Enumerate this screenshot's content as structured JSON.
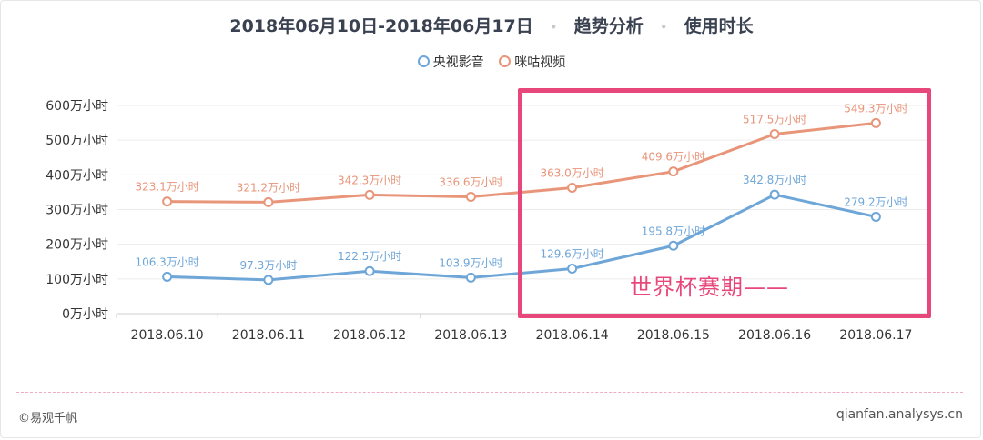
{
  "header": {
    "date_range": "2018年06月10日-2018年06月17日",
    "section": "趋势分析",
    "metric": "使用时长",
    "separator": "•"
  },
  "colors": {
    "series_1": "#6ea6d8",
    "series_2": "#e8957a",
    "highlight": "#e8477b",
    "grid": "#ececec",
    "axis_text": "#333333"
  },
  "chart_data": {
    "type": "line",
    "categories": [
      "2018.06.10",
      "2018.06.11",
      "2018.06.12",
      "2018.06.13",
      "2018.06.14",
      "2018.06.15",
      "2018.06.16",
      "2018.06.17"
    ],
    "series": [
      {
        "name": "央视影音",
        "values": [
          106.3,
          97.3,
          122.5,
          103.9,
          129.6,
          195.8,
          342.8,
          279.2
        ],
        "labels": [
          "106.3万小时",
          "97.3万小时",
          "122.5万小时",
          "103.9万小时",
          "129.6万小时",
          "195.8万小时",
          "342.8万小时",
          "279.2万小时"
        ]
      },
      {
        "name": "咪咕视频",
        "values": [
          323.1,
          321.2,
          342.3,
          336.6,
          363.0,
          409.6,
          517.5,
          549.3
        ],
        "labels": [
          "323.1万小时",
          "321.2万小时",
          "342.3万小时",
          "336.6万小时",
          "363.0万小时",
          "409.6万小时",
          "517.5万小时",
          "549.3万小时"
        ]
      }
    ],
    "y_ticks": [
      0,
      100,
      200,
      300,
      400,
      500,
      600
    ],
    "y_tick_labels": [
      "0万小时",
      "100万小时",
      "200万小时",
      "300万小时",
      "400万小时",
      "500万小时",
      "600万小时"
    ],
    "ylim": [
      0,
      600
    ],
    "grid": true,
    "legend_position": "top-center",
    "annotation": "世界杯赛期——"
  },
  "footer": {
    "left": "©易观千帆",
    "right": "qianfan.analysys.cn"
  }
}
